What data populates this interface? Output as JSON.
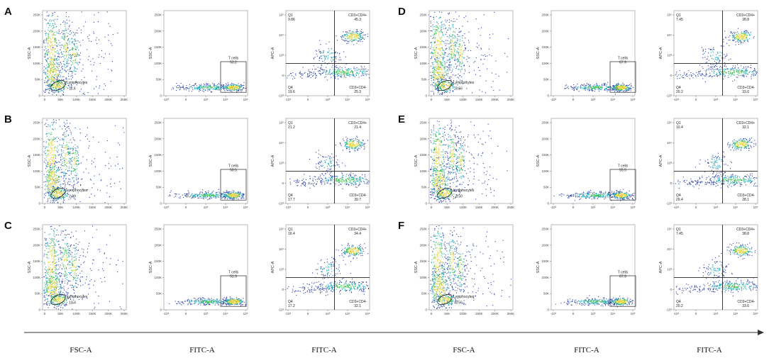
{
  "figure": {
    "bottom_labels": [
      "FSC-A",
      "FITC-A",
      "FITC-A",
      "FSC-A",
      "FITC-A",
      "FITC-A"
    ],
    "panels": [
      {
        "letter": "A",
        "lymph_pct": "11.6",
        "t_pct": "53.2",
        "q1": "9.86",
        "q2": "45.3",
        "q3": "25.3",
        "q4": "19.6"
      },
      {
        "letter": "B",
        "lymph_pct": "2.99",
        "t_pct": "50.5",
        "q1": "21.2",
        "q2": "21.4",
        "q3": "39.7",
        "q4": "17.7"
      },
      {
        "letter": "C",
        "lymph_pct": "10.4",
        "t_pct": "51.9",
        "q1": "16.4",
        "q2": "34.4",
        "q3": "32.1",
        "q4": "17.2"
      },
      {
        "letter": "D",
        "lymph_pct": "8.56",
        "t_pct": "67.9",
        "q1": "7.45",
        "q2": "38.8",
        "q3": "33.6",
        "q4": "20.2"
      },
      {
        "letter": "E",
        "lymph_pct": "3.50",
        "t_pct": "55.5",
        "q1": "10.4",
        "q2": "32.1",
        "q3": "28.1",
        "q4": "29.4"
      },
      {
        "letter": "F",
        "lymph_pct": "8.56",
        "t_pct": "67.9",
        "q1": "7.45",
        "q2": "38.8",
        "q3": "33.6",
        "q4": "20.2"
      }
    ],
    "labels": {
      "lymph_gate": "Lymphocytes",
      "t_gate": "T cells",
      "q1": "Q1",
      "q2": "CD3+CD4+",
      "q3": "CD3+CD4-",
      "q4": "Q4",
      "ssc": "SSC-A",
      "apc": "APC-A",
      "fsc_ticks": [
        "0",
        "50K",
        "100K",
        "150K",
        "200K",
        "250K"
      ],
      "ssc_ticks": [
        "0",
        "50K",
        "100K",
        "150K",
        "200K",
        "250K"
      ],
      "fitc_ticks": [
        "-10³",
        "0",
        "10³",
        "10⁴",
        "10⁵"
      ],
      "apc_ticks": [
        "-10³",
        "0",
        "10³",
        "10⁴",
        "10⁵"
      ]
    }
  },
  "colors": {
    "low": "#2b3fa8",
    "mid": "#1fa3b8",
    "high": "#3fbf50",
    "peak": "#e8d84a",
    "lines": "#222222",
    "arrow": "#333333"
  }
}
